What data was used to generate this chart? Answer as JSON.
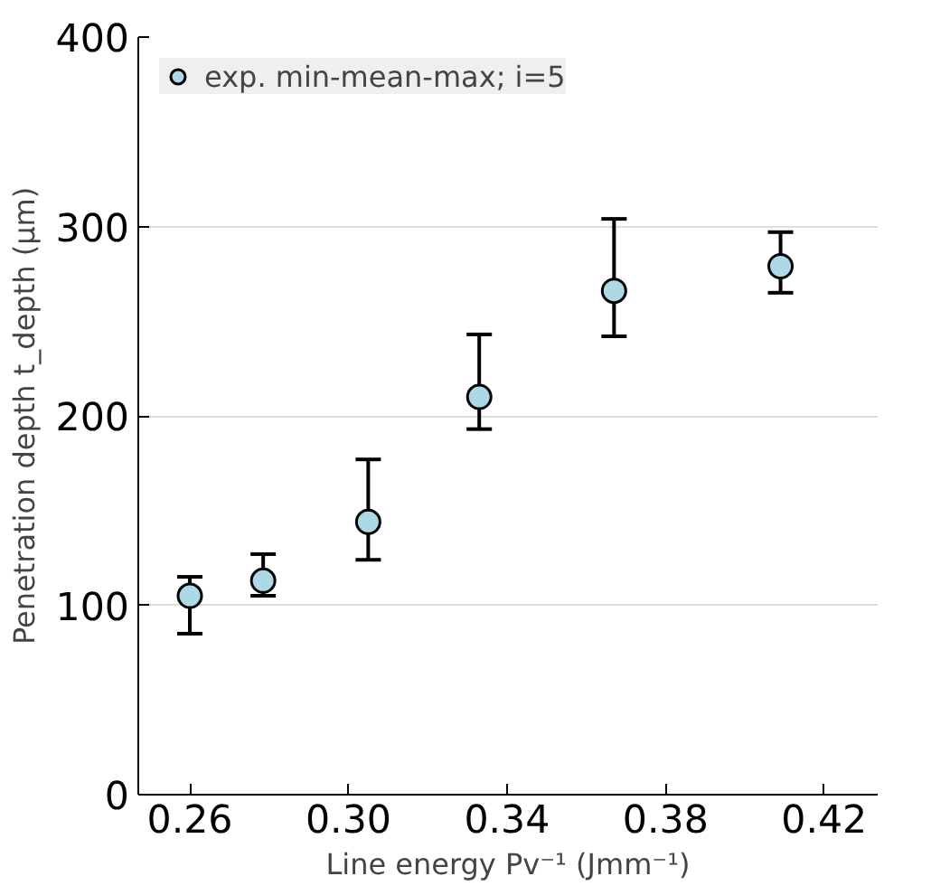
{
  "chart_data": {
    "type": "scatter",
    "xlabel": "Line energy Pv⁻¹ (Jmm⁻¹)",
    "ylabel": "Penetration depth t_depth (μm)",
    "x": [
      0.26,
      0.2785,
      0.305,
      0.333,
      0.367,
      0.409
    ],
    "series": [
      {
        "name": "exp. min-mean-max; i=5",
        "color": "#add8e6",
        "values": [
          105,
          113,
          144,
          210,
          266,
          279
        ],
        "errors": [
          [
            85,
            115
          ],
          [
            105,
            127
          ],
          [
            124,
            177
          ],
          [
            193,
            243
          ],
          [
            242,
            304
          ],
          [
            265,
            297
          ]
        ]
      }
    ],
    "xlim": [
      0.247,
      0.4335
    ],
    "ylim": [
      0,
      400
    ],
    "xticks": [
      {
        "value": 0.26,
        "label": "0.26"
      },
      {
        "value": 0.3,
        "label": "0.30"
      },
      {
        "value": 0.34,
        "label": "0.34"
      },
      {
        "value": 0.38,
        "label": "0.38"
      },
      {
        "value": 0.42,
        "label": "0.42"
      }
    ],
    "yticks": [
      0,
      100,
      200,
      300,
      400
    ],
    "grid": "y",
    "legend": "top left",
    "marker": "circle"
  }
}
